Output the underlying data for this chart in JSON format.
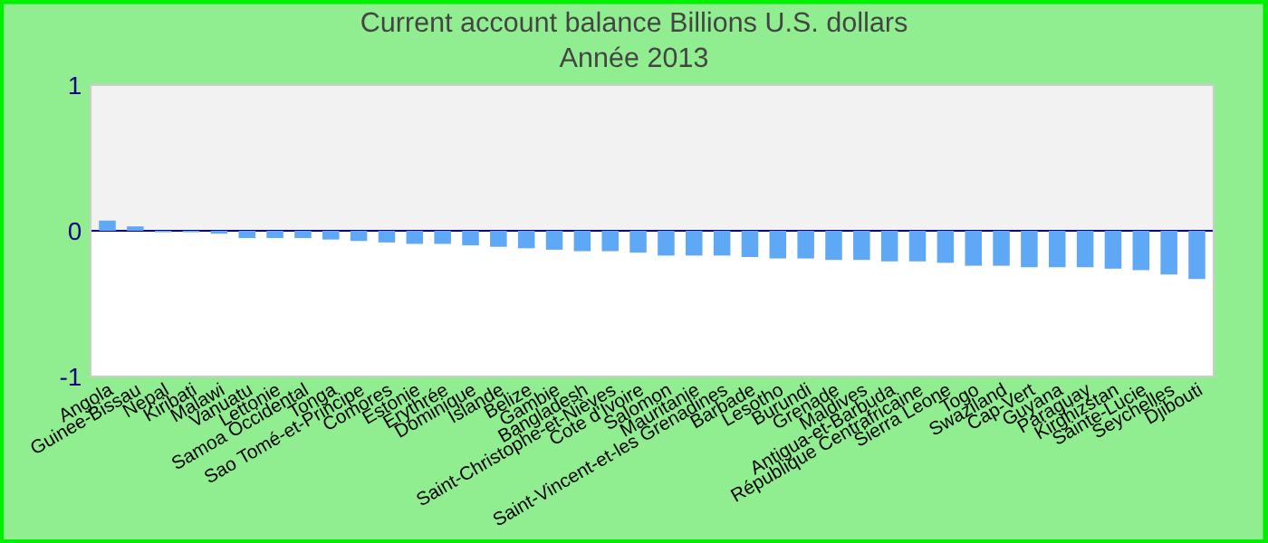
{
  "chart_data": {
    "type": "bar",
    "title": "Current account balance Billions U.S. dollars",
    "subtitle": "Année 2013",
    "categories": [
      "Angola",
      "Guinee-Bissau",
      "Nepal",
      "Kiribati",
      "Malawi",
      "Vanuatu",
      "Lettonie",
      "Samoa Occidental",
      "Tonga",
      "Sao Tomé-et-Principe",
      "Comores",
      "Estonie",
      "Erythrée",
      "Dominique",
      "Islande",
      "Belize",
      "Gambie",
      "Bangladesh",
      "Saint-Christophe-et-Nièves",
      "Cote d'Ivoire",
      "Salomon",
      "Mauritanie",
      "Saint-Vincent-et-les Grenadines",
      "Barbade",
      "Lesotho",
      "Burundi",
      "Grenade",
      "Maldives",
      "Antigua-et-Barbuda",
      "République Centrafricaine",
      "Sierra Leone",
      "Togo",
      "Swaziland",
      "Cap-Vert",
      "Guyana",
      "Paraguay",
      "Kirghizstan",
      "Sainte-Lucie",
      "Seychelles",
      "Djibouti"
    ],
    "values": [
      0.07,
      0.03,
      -0.01,
      -0.01,
      -0.02,
      -0.05,
      -0.05,
      -0.05,
      -0.06,
      -0.07,
      -0.08,
      -0.09,
      -0.09,
      -0.1,
      -0.11,
      -0.12,
      -0.13,
      -0.14,
      -0.14,
      -0.15,
      -0.17,
      -0.17,
      -0.17,
      -0.18,
      -0.19,
      -0.19,
      -0.2,
      -0.2,
      -0.21,
      -0.21,
      -0.22,
      -0.24,
      -0.24,
      -0.25,
      -0.25,
      -0.25,
      -0.26,
      -0.27,
      -0.3,
      -0.33
    ],
    "color": "#5fa8f5",
    "ylim": [
      -1,
      1
    ],
    "yticks": [
      -1,
      0,
      1
    ],
    "bands": [
      {
        "axis": "y",
        "from": 0,
        "to": 1,
        "color": "#f2f2f2"
      }
    ],
    "ref_lines": [
      {
        "axis": "y",
        "value": 0,
        "color": "#000080"
      }
    ],
    "grid": false,
    "legend": false
  }
}
